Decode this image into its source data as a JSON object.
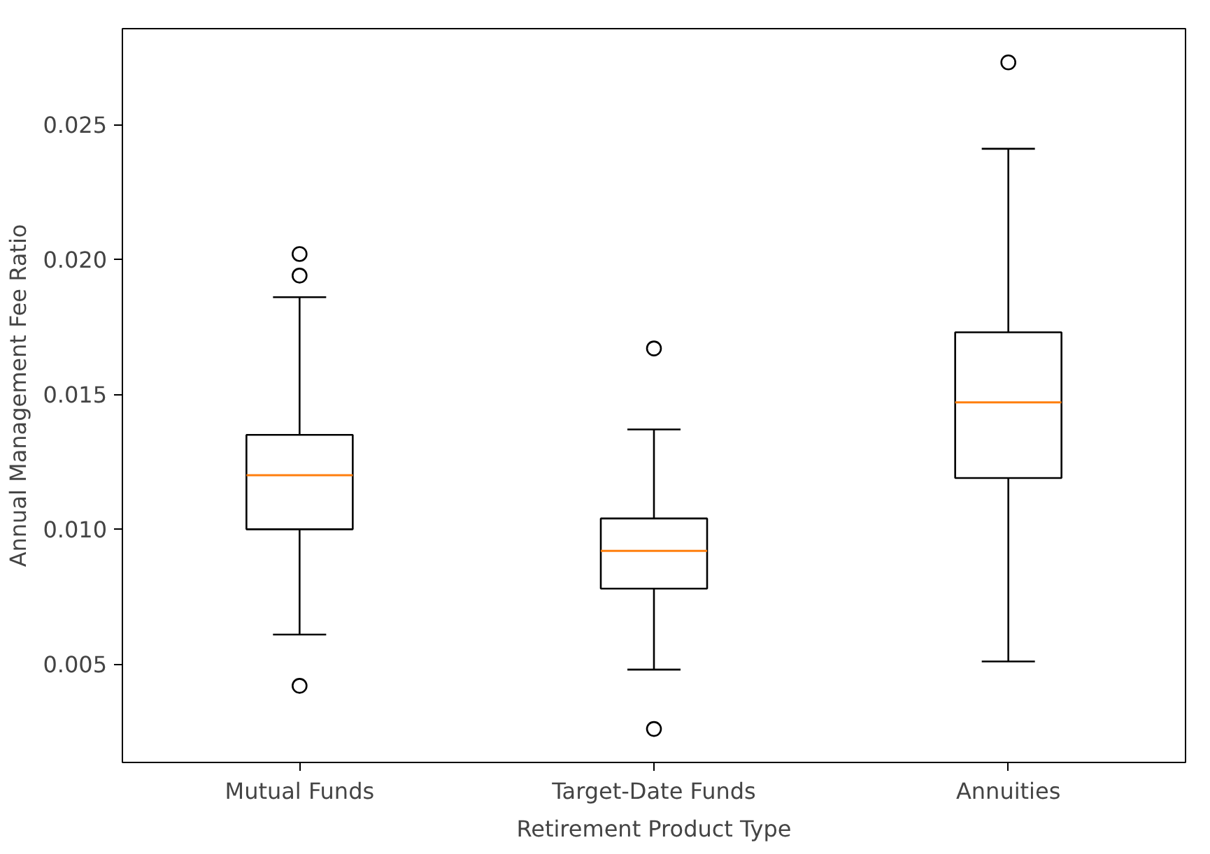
{
  "chart_data": {
    "type": "box",
    "xlabel": "Retirement Product Type",
    "ylabel": "Annual Management Fee Ratio",
    "categories": [
      "Mutual Funds",
      "Target-Date Funds",
      "Annuities"
    ],
    "boxes": [
      {
        "low": 0.0061,
        "q1": 0.01,
        "median": 0.012,
        "q3": 0.0135,
        "high": 0.0186,
        "outliers": [
          0.0202,
          0.0194,
          0.0042
        ]
      },
      {
        "low": 0.0048,
        "q1": 0.0078,
        "median": 0.0092,
        "q3": 0.0104,
        "high": 0.0137,
        "outliers": [
          0.0167,
          0.0026
        ]
      },
      {
        "low": 0.0051,
        "q1": 0.0119,
        "median": 0.0147,
        "q3": 0.0173,
        "high": 0.0241,
        "outliers": [
          0.0273
        ]
      }
    ],
    "color": "#000000",
    "ylim": [
      0.00136,
      0.02855
    ],
    "yticks": [
      0.005,
      {
        "value": 0.01,
        "label": "0.010"
      },
      0.015,
      {
        "value": 0.02,
        "label": "0.020"
      },
      0.025
    ],
    "grid": false
  }
}
